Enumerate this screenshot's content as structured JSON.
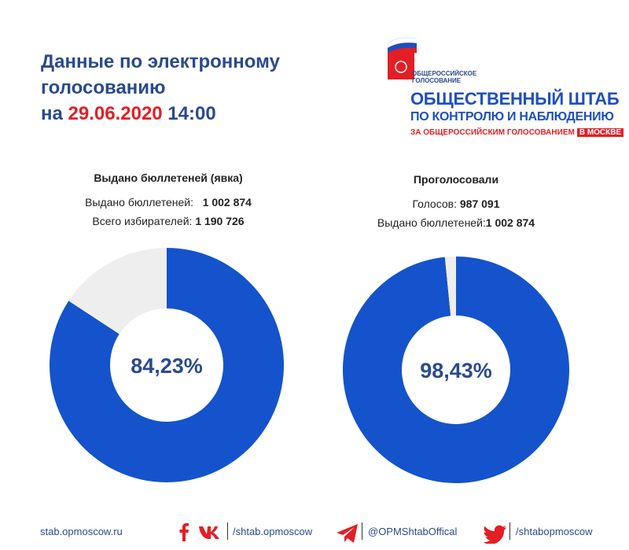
{
  "header": {
    "title_line1": "Данные по электронному",
    "title_line2": "голосованию",
    "title_prefix": "на ",
    "date": "29.06.2020",
    "time": " 14:00"
  },
  "logo": {
    "small_line1": "ОБЩЕРОССИЙСКОЕ",
    "small_line2": "ГОЛОСОВАНИЕ",
    "big": "ОБЩЕСТВЕННЫЙ ШТАБ",
    "mid": "ПО КОНТРОЛЮ И НАБЛЮДЕНИЮ",
    "red": "ЗА ОБЩЕРОССИЙСКИМ ГОЛОСОВАНИЕМ",
    "red_box": "В МОСКВЕ"
  },
  "left_stats": {
    "heading": "Выдано бюллетеней (явка)",
    "label1": "Выдано бюллетеней:",
    "value1": "1 002 874",
    "label2": "Всего избирателей:",
    "value2": "1 190 726"
  },
  "right_stats": {
    "heading": "Проголосовали",
    "label1": "Голосов:",
    "value1": "987 091",
    "label2": "Выдано бюллетеней:",
    "value2": "1 002 874"
  },
  "chart_data": [
    {
      "type": "pie",
      "values": [
        84.23,
        15.77
      ],
      "colors": [
        "#1453cc",
        "#eeeeee"
      ],
      "center_label": "84,23%"
    },
    {
      "type": "pie",
      "values": [
        98.43,
        1.57
      ],
      "colors": [
        "#1453cc",
        "#eeeeee"
      ],
      "center_label": "98,43%"
    }
  ],
  "footer": {
    "site": "stab.opmoscow.ru",
    "vk_handle": "/shtab.opmoscow",
    "telegram_handle": "@OPMShtabOffical",
    "twitter_handle": "/shtabopmoscow",
    "facebook_icon": "facebook-icon",
    "vk_icon": "vk-icon",
    "telegram_icon": "telegram-icon",
    "twitter_icon": "twitter-icon"
  },
  "colors": {
    "accent_blue": "#1453cc",
    "title_blue": "#2a4a8e",
    "date_red": "#e31e24"
  }
}
